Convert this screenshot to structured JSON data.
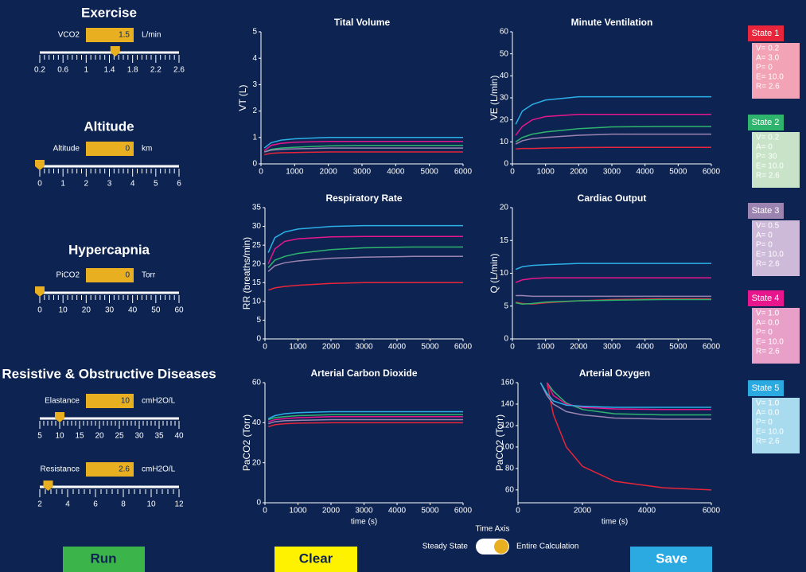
{
  "controls": [
    {
      "title": "Exercise",
      "sliders": [
        {
          "label": "VCO2",
          "value": 1.5,
          "unit": "L/min",
          "lim": [
            0.2,
            2.6
          ],
          "ticks": [
            0.2,
            0.6,
            1,
            1.4,
            1.8,
            2.2,
            2.6
          ]
        }
      ]
    },
    {
      "title": "Altitude",
      "sliders": [
        {
          "label": "Altitude",
          "value": 0,
          "unit": "km",
          "lim": [
            0,
            6
          ],
          "ticks": [
            0,
            1,
            2,
            3,
            4,
            5,
            6
          ]
        }
      ]
    },
    {
      "title": "Hypercapnia",
      "sliders": [
        {
          "label": "PiCO2",
          "value": 0,
          "unit": "Torr",
          "lim": [
            0,
            60
          ],
          "ticks": [
            0,
            10,
            20,
            30,
            40,
            50,
            60
          ]
        }
      ]
    },
    {
      "title": "Resistive & Obstructive Diseases",
      "sliders": [
        {
          "label": "Elastance",
          "value": 10,
          "unit": "cmH2O/L",
          "lim": [
            5,
            40
          ],
          "ticks": [
            5,
            10,
            15,
            20,
            25,
            30,
            35,
            40
          ]
        },
        {
          "label": "Resistance",
          "value": 2.6,
          "unit": "cmH2O/L",
          "lim": [
            2,
            12
          ],
          "ticks": [
            2,
            4,
            6,
            8,
            10,
            12
          ]
        }
      ]
    }
  ],
  "charts": [
    {
      "type": "line",
      "title": "Tital Volume",
      "ylabel": "VT (L)",
      "x": [
        100,
        300,
        600,
        1000,
        2000,
        3000,
        4500,
        6000
      ],
      "xlim": [
        0,
        6000
      ],
      "xticks": [
        0,
        1000,
        2000,
        3000,
        4000,
        5000,
        6000
      ],
      "ylim": [
        0,
        5
      ],
      "yticks": [
        0,
        1,
        2,
        3,
        4,
        5
      ],
      "series": [
        {
          "color": "#e8253a",
          "values": [
            0.35,
            0.4,
            0.42,
            0.43,
            0.45,
            0.45,
            0.45,
            0.45
          ]
        },
        {
          "color": "#2fb46e",
          "values": [
            0.45,
            0.55,
            0.6,
            0.63,
            0.68,
            0.7,
            0.7,
            0.7
          ]
        },
        {
          "color": "#9c84b0",
          "values": [
            0.45,
            0.52,
            0.55,
            0.57,
            0.6,
            0.6,
            0.6,
            0.6
          ]
        },
        {
          "color": "#e8168c",
          "values": [
            0.5,
            0.7,
            0.78,
            0.82,
            0.85,
            0.85,
            0.85,
            0.85
          ]
        },
        {
          "color": "#2bb0e8",
          "values": [
            0.6,
            0.8,
            0.9,
            0.95,
            1.0,
            1.0,
            1.0,
            1.0
          ]
        }
      ]
    },
    {
      "type": "line",
      "title": "Minute Ventilation",
      "ylabel": "VE (L/min)",
      "x": [
        100,
        300,
        600,
        1000,
        2000,
        3000,
        4500,
        6000
      ],
      "xlim": [
        0,
        6000
      ],
      "xticks": [
        0,
        1000,
        2000,
        3000,
        4000,
        5000,
        6000
      ],
      "ylim": [
        0,
        60
      ],
      "yticks": [
        0,
        10,
        20,
        30,
        40,
        50,
        60
      ],
      "series": [
        {
          "color": "#e8253a",
          "values": [
            6.8,
            7,
            7,
            7.2,
            7.4,
            7.5,
            7.5,
            7.5
          ]
        },
        {
          "color": "#2fb46e",
          "values": [
            10,
            12,
            13.5,
            14.5,
            16,
            16.8,
            17,
            17
          ]
        },
        {
          "color": "#9c84b0",
          "values": [
            9,
            10.5,
            11.5,
            12,
            13,
            13.5,
            13.5,
            13.5
          ]
        },
        {
          "color": "#e8168c",
          "values": [
            13,
            17,
            20,
            21.5,
            22.5,
            22.5,
            22.5,
            22.5
          ]
        },
        {
          "color": "#2bb0e8",
          "values": [
            18,
            24,
            27,
            29,
            30.5,
            30.5,
            30.5,
            30.5
          ]
        }
      ]
    },
    {
      "type": "line",
      "title": "Respiratory Rate",
      "ylabel": "RR (breaths/min)",
      "x": [
        100,
        300,
        600,
        1000,
        2000,
        3000,
        4500,
        6000
      ],
      "xlim": [
        0,
        6000
      ],
      "xticks": [
        0,
        1000,
        2000,
        3000,
        4000,
        5000,
        6000
      ],
      "ylim": [
        0,
        35
      ],
      "yticks": [
        0,
        5,
        10,
        15,
        20,
        25,
        30,
        35
      ],
      "series": [
        {
          "color": "#e8253a",
          "values": [
            13,
            13.6,
            14,
            14.3,
            14.8,
            15,
            15,
            15
          ]
        },
        {
          "color": "#2fb46e",
          "values": [
            19,
            21,
            22,
            22.8,
            23.8,
            24.3,
            24.5,
            24.5
          ]
        },
        {
          "color": "#9c84b0",
          "values": [
            18,
            19.5,
            20.3,
            20.8,
            21.5,
            21.8,
            22,
            22
          ]
        },
        {
          "color": "#e8168c",
          "values": [
            20,
            24,
            26,
            26.7,
            27.2,
            27.3,
            27.3,
            27.3
          ]
        },
        {
          "color": "#2bb0e8",
          "values": [
            23,
            27,
            28.5,
            29.3,
            30,
            30.2,
            30.2,
            30.2
          ]
        }
      ]
    },
    {
      "type": "line",
      "title": "Cardiac Output",
      "ylabel": "Q (L/min)",
      "x": [
        100,
        300,
        600,
        1000,
        2000,
        3000,
        4500,
        6000
      ],
      "xlim": [
        0,
        6000
      ],
      "xticks": [
        0,
        1000,
        2000,
        3000,
        4000,
        5000,
        6000
      ],
      "ylim": [
        0,
        20
      ],
      "yticks": [
        0,
        5,
        10,
        15,
        20
      ],
      "series": [
        {
          "color": "#e8253a",
          "values": [
            5.6,
            5.4,
            5.3,
            5.5,
            5.8,
            6,
            6.1,
            6.1
          ]
        },
        {
          "color": "#2fb46e",
          "values": [
            5.5,
            5.3,
            5.4,
            5.6,
            5.8,
            5.9,
            6,
            6
          ]
        },
        {
          "color": "#9c84b0",
          "values": [
            6.6,
            6.6,
            6.5,
            6.5,
            6.5,
            6.5,
            6.5,
            6.5
          ]
        },
        {
          "color": "#e8168c",
          "values": [
            8.6,
            9,
            9.2,
            9.3,
            9.3,
            9.3,
            9.3,
            9.3
          ]
        },
        {
          "color": "#2bb0e8",
          "values": [
            10.6,
            11,
            11.2,
            11.3,
            11.5,
            11.5,
            11.5,
            11.5
          ]
        }
      ]
    },
    {
      "type": "line",
      "title": "Arterial Carbon Dioxide",
      "ylabel": "PaCO2 (Torr)",
      "xlabel": "time (s)",
      "x": [
        100,
        300,
        600,
        1000,
        2000,
        3000,
        4500,
        6000
      ],
      "xlim": [
        0,
        6000
      ],
      "xticks": [
        0,
        1000,
        2000,
        3000,
        4000,
        5000,
        6000
      ],
      "ylim": [
        0,
        60
      ],
      "yticks": [
        0,
        20,
        40,
        60
      ],
      "series": [
        {
          "color": "#e8253a",
          "values": [
            38,
            39,
            39.5,
            39.8,
            40,
            40,
            40,
            40
          ]
        },
        {
          "color": "#2fb46e",
          "values": [
            41.5,
            42.5,
            43,
            43.5,
            44,
            44,
            44,
            44
          ]
        },
        {
          "color": "#9c84b0",
          "values": [
            39.5,
            40.5,
            41,
            41.2,
            41.5,
            41.5,
            41.5,
            41.5
          ]
        },
        {
          "color": "#e8168c",
          "values": [
            40.5,
            41.5,
            42,
            42.5,
            43,
            43,
            43,
            43
          ]
        },
        {
          "color": "#2bb0e8",
          "values": [
            42,
            43.5,
            44.5,
            45,
            45.5,
            45.5,
            45.5,
            45.5
          ]
        }
      ]
    },
    {
      "type": "line",
      "title": "Arterial Oxygen",
      "ylabel": "PaCO2 (Torr)",
      "xlabel": "time (s)",
      "x": [
        700,
        900,
        1100,
        1500,
        2000,
        3000,
        4500,
        6000
      ],
      "xlim": [
        0,
        6000
      ],
      "xticks": [
        0,
        2000,
        4000,
        6000
      ],
      "ylim": [
        48,
        160
      ],
      "yticks": [
        60,
        80,
        100,
        120,
        140,
        160
      ],
      "series": [
        {
          "color": "#e8253a",
          "values": [
            null,
            160,
            130,
            100,
            82,
            68,
            62,
            60
          ]
        },
        {
          "color": "#2fb46e",
          "values": [
            null,
            160,
            152,
            141,
            135,
            131,
            130,
            130
          ]
        },
        {
          "color": "#9c84b0",
          "values": [
            160,
            148,
            140,
            133,
            130,
            127,
            126,
            126
          ]
        },
        {
          "color": "#e8168c",
          "values": [
            null,
            160,
            148,
            140,
            137,
            135.5,
            135,
            135
          ]
        },
        {
          "color": "#2bb0e8",
          "values": [
            160,
            150,
            143,
            139,
            138,
            137,
            137,
            137
          ]
        }
      ]
    }
  ],
  "states": [
    {
      "label": "State 1",
      "color": "#e8253a",
      "body": "#f2a3b5",
      "lines": [
        "V= 0.2",
        "A= 3.0",
        "P= 0",
        "E= 10.0",
        "R= 2.6"
      ]
    },
    {
      "label": "State 2",
      "color": "#2fb46e",
      "body": "#c8e3c8",
      "lines": [
        "V= 0.2",
        "A= 0",
        "P= 30",
        "E= 10.0",
        "R= 2.6"
      ]
    },
    {
      "label": "State 3",
      "color": "#9c84b0",
      "body": "#cdbad9",
      "lines": [
        "V= 0.5",
        "A= 0",
        "P= 0",
        "E= 10.0",
        "R= 2.6"
      ]
    },
    {
      "label": "State 4",
      "color": "#e8168c",
      "body": "#e9a0c8",
      "lines": [
        "V= 1.0",
        "A= 0.0",
        "P= 0",
        "E= 10.0",
        "R= 2.6"
      ]
    },
    {
      "label": "State 5",
      "color": "#2ba9e1",
      "body": "#a9dbee",
      "lines": [
        "V= 1.0",
        "A= 0.0",
        "P= 0",
        "E= 10.0",
        "R= 2.6"
      ]
    }
  ],
  "buttons": {
    "run": "Run",
    "clear": "Clear",
    "save": "Save"
  },
  "toggle": {
    "title": "Time Axis",
    "left": "Steady State",
    "right": "Entire Calculation"
  }
}
